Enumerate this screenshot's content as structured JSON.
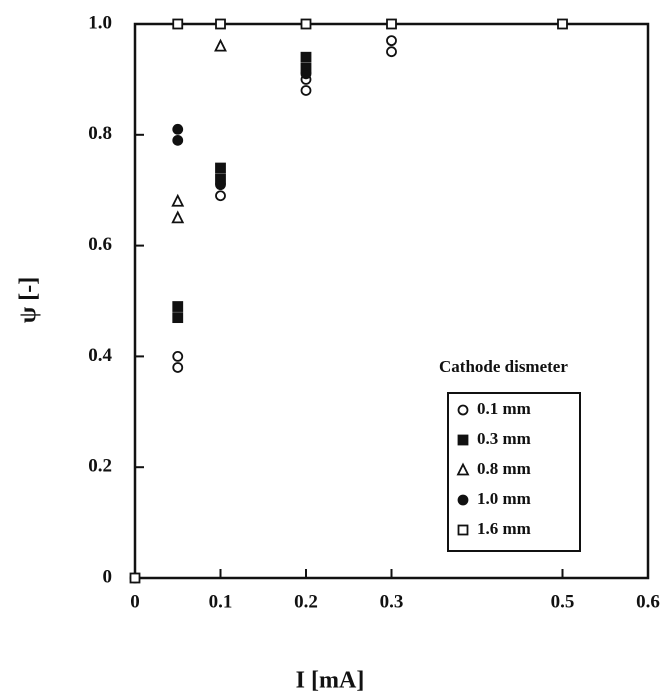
{
  "chart_data": {
    "type": "scatter",
    "x_label": "I [mA]",
    "y_label": "ψ [-]",
    "legend_title": "Cathode dismeter",
    "legend_position": "lower right",
    "xlim": [
      0,
      0.6
    ],
    "ylim": [
      0,
      1
    ],
    "xticks": [
      0,
      0.1,
      0.2,
      0.3,
      0.5,
      0.6
    ],
    "yticks": [
      0,
      0.2,
      0.4,
      0.6,
      0.8,
      {
        "value": 1,
        "label": "1.0"
      }
    ],
    "series": [
      {
        "name": "0.1 mm",
        "marker": "circle-open",
        "color": "#111111",
        "x": [
          0,
          0.05,
          0.05,
          0.1,
          0.2,
          0.2,
          0.3,
          0.3
        ],
        "y": [
          0,
          0.38,
          0.4,
          0.69,
          0.88,
          0.9,
          0.95,
          0.97
        ]
      },
      {
        "name": "0.3 mm",
        "marker": "square-filled",
        "color": "#111111",
        "x": [
          0.05,
          0.05,
          0.1,
          0.1,
          0.2,
          0.2
        ],
        "y": [
          0.47,
          0.49,
          0.72,
          0.74,
          0.92,
          0.94
        ]
      },
      {
        "name": "0.8 mm",
        "marker": "triangle-open",
        "color": "#111111",
        "x": [
          0.05,
          0.05,
          0.1
        ],
        "y": [
          0.65,
          0.68,
          0.96
        ]
      },
      {
        "name": "1.0 mm",
        "marker": "circle-filled",
        "color": "#111111",
        "x": [
          0.05,
          0.05,
          0.1,
          0.2
        ],
        "y": [
          0.79,
          0.81,
          0.71,
          0.91
        ]
      },
      {
        "name": "1.6 mm",
        "marker": "square-open",
        "color": "#111111",
        "x": [
          0,
          0.05,
          0.1,
          0.2,
          0.3,
          0.5
        ],
        "y": [
          0,
          1,
          1,
          1,
          1,
          1
        ]
      }
    ]
  }
}
